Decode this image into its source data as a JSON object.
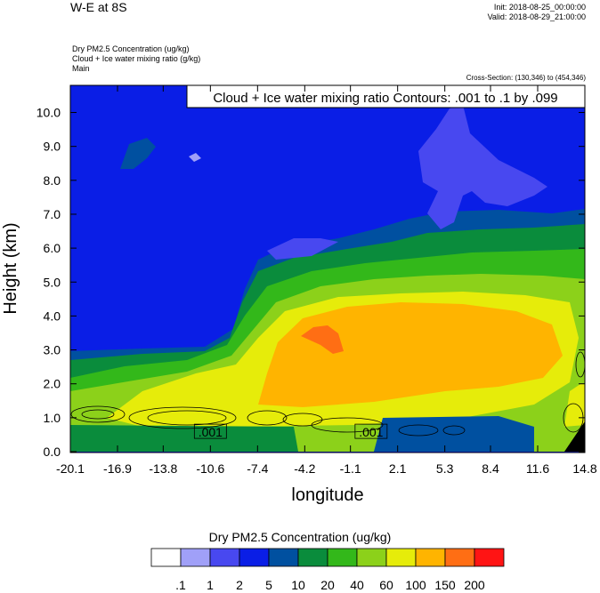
{
  "header": {
    "title": "W-E at 8S",
    "init": "Init: 2018-08-25_00:00:00",
    "valid": "Valid: 2018-08-29_21:00:00",
    "variables": [
      "Dry PM2.5 Concentration   (ug/kg)",
      "Cloud + Ice water mixing ratio   (g/kg)",
      "Main"
    ],
    "cross_section": "Cross-Section: (130,346) to (454,346)"
  },
  "chart_data": {
    "type": "heatmap",
    "title": "",
    "contour_label": "Cloud + Ice water mixing ratio Contours: .001 to .1 by .099",
    "xlabel": "longitude",
    "ylabel": "Height (km)",
    "xlim": [
      -20.1,
      14.8
    ],
    "ylim": [
      0.0,
      10.8
    ],
    "x_ticks": [
      "-20.1",
      "-16.9",
      "-13.8",
      "-10.6",
      "-7.4",
      "-4.2",
      "-1.1",
      "2.1",
      "5.3",
      "8.4",
      "11.6",
      "14.8"
    ],
    "y_ticks": [
      "0.0",
      "1.0",
      "2.0",
      "3.0",
      "4.0",
      "5.0",
      "6.0",
      "7.0",
      "8.0",
      "9.0",
      "10.0"
    ],
    "contour_value_labels": [
      {
        "text": ".001",
        "x": -10.6,
        "y": 0.6
      },
      {
        "text": ".001",
        "x": 0.3,
        "y": 0.6
      }
    ],
    "colorbar": {
      "title": "Dry PM2.5 Concentration  (ug/kg)",
      "labels": [
        ".1",
        "1",
        "2",
        "5",
        "10",
        "20",
        "40",
        "60",
        "100",
        "150",
        "200"
      ],
      "colors": [
        "#ffffff",
        "#a0a0f8",
        "#4848f0",
        "#0a1ee6",
        "#0050a0",
        "#0a8c3c",
        "#33b81a",
        "#8cd11a",
        "#e6ec0a",
        "#ffb400",
        "#ff6e14",
        "#ff1414"
      ]
    }
  }
}
